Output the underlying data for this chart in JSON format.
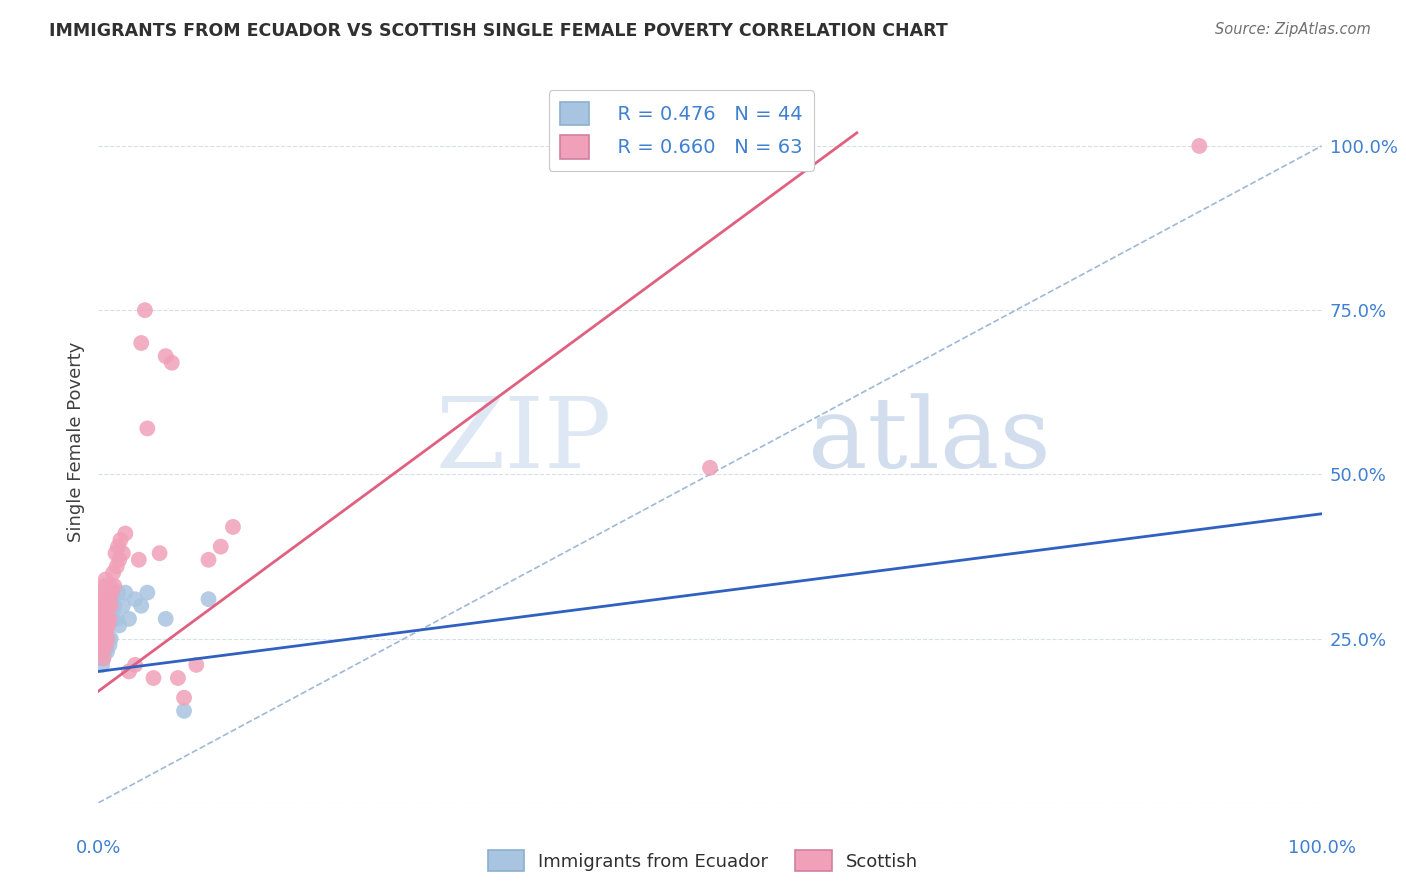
{
  "title": "IMMIGRANTS FROM ECUADOR VS SCOTTISH SINGLE FEMALE POVERTY CORRELATION CHART",
  "source": "Source: ZipAtlas.com",
  "ylabel": "Single Female Poverty",
  "y_ticks": [
    0.0,
    0.25,
    0.5,
    0.75,
    1.0
  ],
  "y_tick_labels": [
    "",
    "25.0%",
    "50.0%",
    "75.0%",
    "100.0%"
  ],
  "legend_blue_r": "R = 0.476",
  "legend_blue_n": "N = 44",
  "legend_pink_r": "R = 0.660",
  "legend_pink_n": "N = 63",
  "blue_color": "#a8c4e0",
  "pink_color": "#f0a0b8",
  "blue_line_color": "#3060c0",
  "pink_line_color": "#e06080",
  "dashed_line_color": "#a0b8d8",
  "watermark_color": "#c8d8f0",
  "background_color": "#ffffff",
  "title_color": "#303030",
  "source_color": "#707070",
  "tick_label_color": "#4080d0",
  "blue_scatter_x": [
    0.001,
    0.001,
    0.002,
    0.002,
    0.002,
    0.002,
    0.003,
    0.003,
    0.003,
    0.003,
    0.004,
    0.004,
    0.004,
    0.004,
    0.005,
    0.005,
    0.005,
    0.005,
    0.006,
    0.006,
    0.007,
    0.007,
    0.007,
    0.008,
    0.008,
    0.009,
    0.009,
    0.01,
    0.01,
    0.011,
    0.012,
    0.013,
    0.015,
    0.016,
    0.017,
    0.02,
    0.022,
    0.025,
    0.03,
    0.035,
    0.04,
    0.055,
    0.07,
    0.09
  ],
  "blue_scatter_y": [
    0.25,
    0.27,
    0.22,
    0.24,
    0.26,
    0.28,
    0.21,
    0.23,
    0.25,
    0.27,
    0.22,
    0.24,
    0.26,
    0.29,
    0.23,
    0.25,
    0.27,
    0.3,
    0.24,
    0.26,
    0.23,
    0.27,
    0.3,
    0.25,
    0.28,
    0.24,
    0.28,
    0.25,
    0.29,
    0.31,
    0.28,
    0.3,
    0.28,
    0.32,
    0.27,
    0.3,
    0.32,
    0.28,
    0.31,
    0.3,
    0.32,
    0.28,
    0.14,
    0.31
  ],
  "pink_scatter_x": [
    0.001,
    0.001,
    0.001,
    0.001,
    0.002,
    0.002,
    0.002,
    0.002,
    0.003,
    0.003,
    0.003,
    0.003,
    0.004,
    0.004,
    0.004,
    0.004,
    0.004,
    0.005,
    0.005,
    0.005,
    0.005,
    0.006,
    0.006,
    0.006,
    0.006,
    0.006,
    0.007,
    0.007,
    0.007,
    0.008,
    0.008,
    0.009,
    0.009,
    0.01,
    0.01,
    0.011,
    0.012,
    0.013,
    0.014,
    0.015,
    0.016,
    0.017,
    0.018,
    0.02,
    0.022,
    0.025,
    0.03,
    0.033,
    0.035,
    0.038,
    0.04,
    0.045,
    0.05,
    0.055,
    0.06,
    0.065,
    0.07,
    0.08,
    0.09,
    0.1,
    0.11,
    0.5,
    0.9
  ],
  "pink_scatter_y": [
    0.25,
    0.27,
    0.29,
    0.32,
    0.24,
    0.26,
    0.28,
    0.3,
    0.23,
    0.25,
    0.27,
    0.3,
    0.22,
    0.24,
    0.26,
    0.28,
    0.32,
    0.25,
    0.27,
    0.3,
    0.33,
    0.24,
    0.26,
    0.28,
    0.31,
    0.34,
    0.25,
    0.28,
    0.31,
    0.27,
    0.3,
    0.28,
    0.31,
    0.3,
    0.33,
    0.32,
    0.35,
    0.33,
    0.38,
    0.36,
    0.39,
    0.37,
    0.4,
    0.38,
    0.41,
    0.2,
    0.21,
    0.37,
    0.7,
    0.75,
    0.57,
    0.19,
    0.38,
    0.68,
    0.67,
    0.19,
    0.16,
    0.21,
    0.37,
    0.39,
    0.42,
    0.51,
    1.0
  ],
  "blue_line_x": [
    0.0,
    1.0
  ],
  "blue_line_y": [
    0.2,
    0.44
  ],
  "pink_line_x": [
    0.0,
    0.62
  ],
  "pink_line_y": [
    0.17,
    1.02
  ],
  "dashed_line_x": [
    0.0,
    1.0
  ],
  "dashed_line_y": [
    0.0,
    1.0
  ],
  "xlim": [
    0.0,
    1.0
  ],
  "ylim": [
    0.0,
    1.1
  ],
  "x_tick_positions": [
    0.0,
    0.25,
    0.5,
    0.75,
    1.0
  ],
  "x_tick_labels_bottom": [
    "0.0%",
    "",
    "",
    "",
    "100.0%"
  ]
}
